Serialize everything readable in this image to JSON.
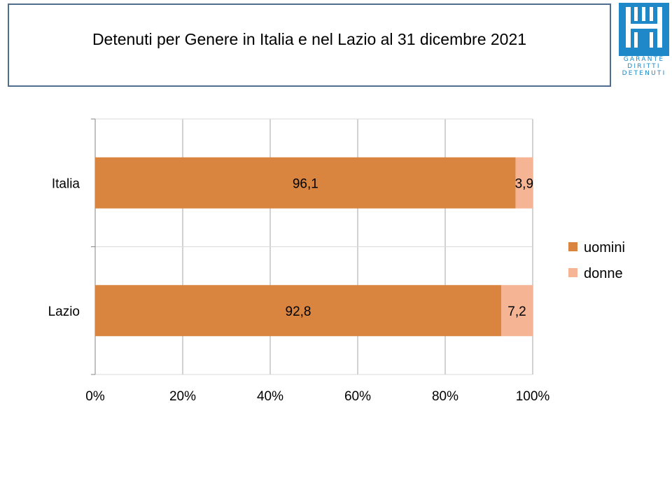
{
  "header": {
    "title": "Detenuti per Genere in Italia e nel Lazio al 31 dicembre 2021"
  },
  "logo": {
    "line1": "GARANTE",
    "line2": "DIRITTI",
    "line3": "DETENUTI",
    "color": "#1e88c9"
  },
  "chart_data": {
    "type": "bar",
    "orientation": "horizontal",
    "stacked": "percent",
    "categories": [
      "Italia",
      "Lazio"
    ],
    "series": [
      {
        "name": "uomini",
        "values": [
          96.1,
          92.8
        ],
        "labels": [
          "96,1",
          "92,8"
        ],
        "color": "#d9853f"
      },
      {
        "name": "donne",
        "values": [
          3.9,
          7.2
        ],
        "labels": [
          "3,9",
          "7,2"
        ],
        "color": "#f5b494"
      }
    ],
    "xlim": [
      0,
      100
    ],
    "xticks": [
      "0%",
      "20%",
      "40%",
      "60%",
      "80%",
      "100%"
    ],
    "grid": true,
    "legend": "right"
  }
}
